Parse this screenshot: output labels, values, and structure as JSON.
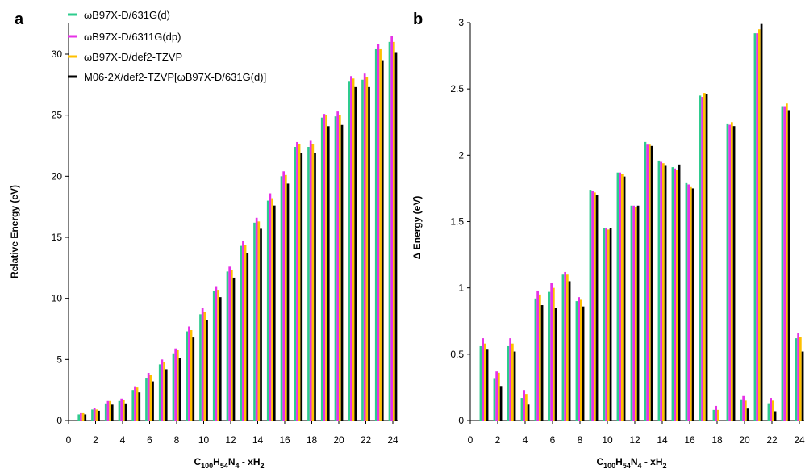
{
  "figure": {
    "panel_a_letter": "a",
    "panel_b_letter": "b",
    "xlabel_main": "C",
    "xlabel_sub1": "100",
    "xlabel_mid1": "H",
    "xlabel_sub2": "54",
    "xlabel_mid2": "N",
    "xlabel_sub3": "4",
    "xlabel_mid3": " - xH",
    "xlabel_sub4": "2"
  },
  "colors": {
    "series": [
      "#2ecc8e",
      "#e632e6",
      "#ffc000",
      "#000000"
    ]
  },
  "chart_data": [
    {
      "type": "bar",
      "title": "",
      "panel": "a",
      "xlabel": "C100H54N4 - xH2",
      "ylabel": "Relative Energy (eV)",
      "xlim": [
        0,
        24
      ],
      "ylim": [
        0,
        32
      ],
      "x_ticks": [
        0,
        2,
        4,
        6,
        8,
        10,
        12,
        14,
        16,
        18,
        20,
        22,
        24
      ],
      "y_ticks": [
        0,
        5,
        10,
        15,
        20,
        25,
        30
      ],
      "grid": false,
      "legend": "top-left",
      "x": [
        1,
        2,
        3,
        4,
        5,
        6,
        7,
        8,
        9,
        10,
        11,
        12,
        13,
        14,
        15,
        16,
        17,
        18,
        19,
        20,
        21,
        22,
        23,
        24
      ],
      "series": [
        {
          "name": "ωB97X-D/631G(d)",
          "values": [
            0.5,
            0.9,
            1.4,
            1.6,
            2.5,
            3.5,
            4.6,
            5.5,
            7.3,
            8.7,
            10.6,
            12.2,
            14.3,
            16.2,
            18.0,
            20.0,
            22.4,
            22.4,
            24.8,
            24.9,
            27.8,
            27.9,
            30.4,
            31.0
          ]
        },
        {
          "name": "ωB97X-D/6311G(dp)",
          "values": [
            0.6,
            1.0,
            1.6,
            1.8,
            2.8,
            3.9,
            5.0,
            5.9,
            7.7,
            9.2,
            11.0,
            12.6,
            14.7,
            16.6,
            18.6,
            20.4,
            22.8,
            22.9,
            25.1,
            25.3,
            28.2,
            28.4,
            30.8,
            31.5
          ]
        },
        {
          "name": "ωB97X-D/def2-TZVP",
          "values": [
            0.6,
            0.9,
            1.6,
            1.7,
            2.7,
            3.7,
            4.8,
            5.8,
            7.4,
            8.9,
            10.7,
            12.3,
            14.4,
            16.3,
            18.2,
            20.1,
            22.6,
            22.6,
            25.0,
            25.0,
            28.0,
            28.1,
            30.4,
            31.0
          ]
        },
        {
          "name": "M06-2X/def2-TZVP[ωB97X-D/631G(d)]",
          "values": [
            0.5,
            0.8,
            1.3,
            1.4,
            2.3,
            3.2,
            4.2,
            5.1,
            6.8,
            8.2,
            10.1,
            11.7,
            13.7,
            15.7,
            17.6,
            19.4,
            21.9,
            21.9,
            24.1,
            24.2,
            27.3,
            27.3,
            29.5,
            30.1
          ]
        }
      ]
    },
    {
      "type": "bar",
      "title": "",
      "panel": "b",
      "xlabel": "C100H54N4 - xH2",
      "ylabel": "Δ Energy (eV)",
      "xlim": [
        0,
        24
      ],
      "ylim": [
        0,
        3
      ],
      "x_ticks": [
        0,
        2,
        4,
        6,
        8,
        10,
        12,
        14,
        16,
        18,
        20,
        22,
        24
      ],
      "y_ticks": [
        0,
        0.5,
        1,
        1.5,
        2,
        2.5,
        3
      ],
      "y_tick_labels": [
        "0",
        "0.5",
        "1",
        "1.5",
        "2",
        "2.5",
        "3"
      ],
      "grid": false,
      "legend": "none",
      "x": [
        1,
        2,
        3,
        4,
        5,
        6,
        7,
        8,
        9,
        10,
        11,
        12,
        13,
        14,
        15,
        16,
        17,
        18,
        19,
        20,
        21,
        22,
        23,
        24
      ],
      "series": [
        {
          "name": "ωB97X-D/631G(d)",
          "values": [
            0.56,
            0.32,
            0.56,
            0.17,
            0.92,
            0.97,
            1.1,
            0.9,
            1.74,
            1.45,
            1.87,
            1.62,
            2.1,
            1.96,
            1.91,
            1.79,
            2.45,
            0.08,
            2.24,
            0.16,
            2.92,
            0.13,
            2.37,
            0.62
          ]
        },
        {
          "name": "ωB97X-D/6311G(dp)",
          "values": [
            0.62,
            0.37,
            0.62,
            0.23,
            0.98,
            1.04,
            1.12,
            0.93,
            1.73,
            1.45,
            1.87,
            1.62,
            2.08,
            1.95,
            1.9,
            1.78,
            2.44,
            0.11,
            2.23,
            0.19,
            2.92,
            0.17,
            2.37,
            0.66
          ]
        },
        {
          "name": "ωB97X-D/def2-TZVP",
          "values": [
            0.58,
            0.36,
            0.58,
            0.2,
            0.95,
            1.0,
            1.1,
            0.91,
            1.72,
            1.44,
            1.86,
            1.61,
            2.08,
            1.94,
            1.89,
            1.76,
            2.47,
            0.08,
            2.25,
            0.15,
            2.95,
            0.15,
            2.39,
            0.63
          ]
        },
        {
          "name": "M06-2X/def2-TZVP[ωB97X-D/631G(d)]",
          "values": [
            0.54,
            0.26,
            0.52,
            0.12,
            0.87,
            0.85,
            1.05,
            0.86,
            1.7,
            1.45,
            1.84,
            1.62,
            2.07,
            1.92,
            1.93,
            1.75,
            2.46,
            0.0,
            2.22,
            0.09,
            2.99,
            0.07,
            2.34,
            0.52
          ]
        }
      ]
    }
  ]
}
